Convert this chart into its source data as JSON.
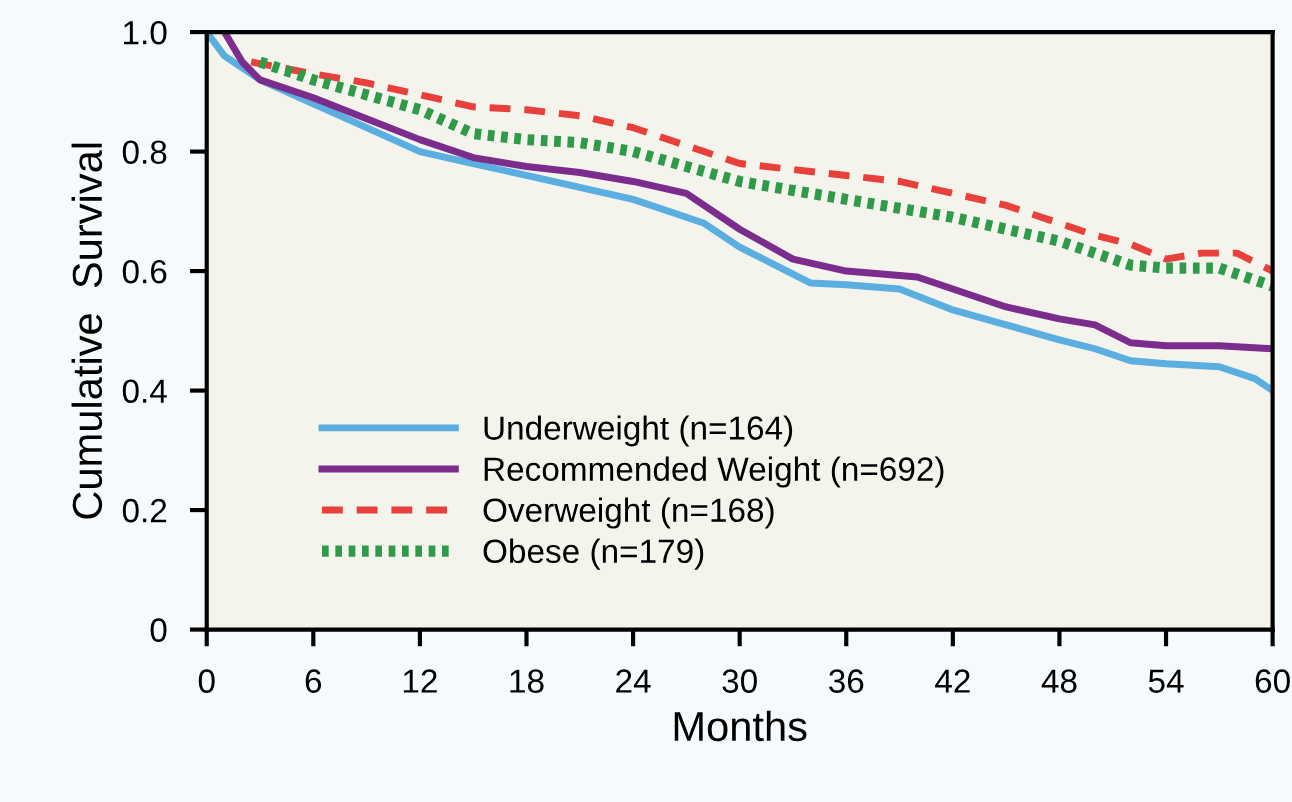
{
  "chart_data": {
    "type": "line",
    "xlabel": "Months",
    "ylabel": "Cumulative  Survival",
    "xlim": [
      0,
      60
    ],
    "xticks": [
      0,
      6,
      12,
      18,
      24,
      30,
      36,
      42,
      48,
      54,
      60
    ],
    "ylim": [
      0,
      1.0
    ],
    "yticks": [
      {
        "value": 0,
        "label": "0"
      },
      0.2,
      0.4,
      0.6,
      0.8,
      {
        "value": 1.0,
        "label": "1.0"
      }
    ],
    "grid": false,
    "legend": "bottom left",
    "marker": "none",
    "series": [
      {
        "name": "Underweight (n=164)",
        "color": "#5aaee0",
        "line_style": "solid",
        "x": [
          0,
          1,
          3,
          6,
          9,
          12,
          15,
          18,
          21,
          24,
          26,
          28,
          30,
          32,
          34,
          36,
          39,
          42,
          45,
          48,
          50,
          52,
          54,
          57,
          59,
          60
        ],
        "values": [
          1.0,
          0.96,
          0.92,
          0.88,
          0.84,
          0.8,
          0.78,
          0.76,
          0.74,
          0.72,
          0.7,
          0.68,
          0.64,
          0.61,
          0.58,
          0.577,
          0.57,
          0.535,
          0.51,
          0.485,
          0.47,
          0.45,
          0.445,
          0.44,
          0.42,
          0.4
        ]
      },
      {
        "name": "Recommended Weight (n=692)",
        "color": "#7b2d8e",
        "line_style": "solid",
        "x": [
          1,
          2,
          3,
          6,
          9,
          12,
          15,
          18,
          21,
          24,
          27,
          28,
          30,
          33,
          36,
          40,
          42,
          45,
          48,
          50,
          52,
          54,
          57,
          60
        ],
        "values": [
          1.0,
          0.95,
          0.92,
          0.89,
          0.855,
          0.82,
          0.79,
          0.775,
          0.765,
          0.75,
          0.73,
          0.71,
          0.67,
          0.62,
          0.6,
          0.59,
          0.57,
          0.54,
          0.52,
          0.51,
          0.48,
          0.475,
          0.475,
          0.47
        ]
      },
      {
        "name": "Overweight (n=168)",
        "color": "#e8403a",
        "line_style": "dashed",
        "x": [
          2.5,
          6,
          9,
          12,
          15,
          18,
          21,
          24,
          27,
          30,
          33,
          36,
          39,
          42,
          45,
          48,
          50,
          52,
          54,
          56,
          58,
          60
        ],
        "values": [
          0.95,
          0.93,
          0.915,
          0.895,
          0.875,
          0.87,
          0.86,
          0.84,
          0.81,
          0.78,
          0.77,
          0.76,
          0.75,
          0.73,
          0.71,
          0.68,
          0.66,
          0.645,
          0.62,
          0.63,
          0.63,
          0.6
        ]
      },
      {
        "name": "Obese (n=179)",
        "color": "#2e9a4a",
        "line_style": "dotted",
        "x": [
          3,
          6,
          9,
          12,
          15,
          18,
          21,
          24,
          27,
          30,
          33,
          36,
          39,
          42,
          45,
          48,
          50,
          52,
          54,
          57,
          60
        ],
        "values": [
          0.95,
          0.92,
          0.895,
          0.87,
          0.83,
          0.82,
          0.815,
          0.8,
          0.775,
          0.75,
          0.735,
          0.72,
          0.705,
          0.69,
          0.67,
          0.65,
          0.63,
          0.61,
          0.605,
          0.605,
          0.575
        ]
      }
    ]
  }
}
